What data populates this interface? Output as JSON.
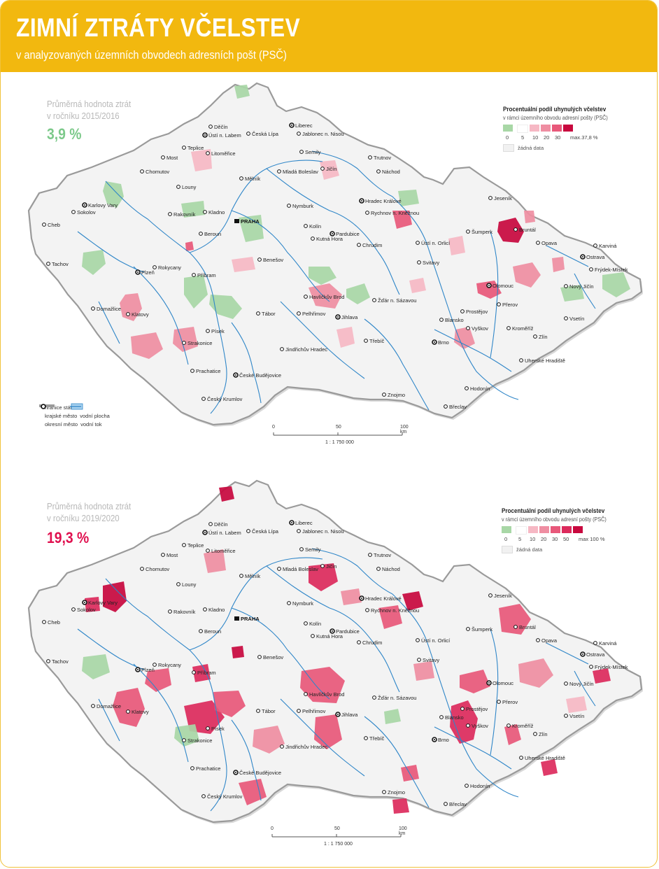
{
  "header": {
    "title": "ZIMNÍ ZTRÁTY VČELSTEV",
    "subtitle": "v analyzovaných územních obvodech adresních pošt (PSČ)"
  },
  "maps": [
    {
      "avg_label_1": "Průměrná hodnota ztrát",
      "avg_label_2": "v ročníku 2015/2016",
      "avg_value": "3,9 %",
      "avg_color": "#7cc98a",
      "legend_title": "Procentuální podíl uhynulých včelstev",
      "legend_subtitle": "v rámci územního obvodu adresní pošty (PSČ)",
      "legend_ticks": [
        "0",
        "5",
        "10",
        "20",
        "30",
        "max.37,8 %"
      ],
      "legend_nodata": "žádná data",
      "scale_ticks": [
        "0",
        "50",
        "100 km"
      ],
      "scale_ratio": "1 : 1 750 000"
    },
    {
      "avg_label_1": "Průměrná hodnota ztrát",
      "avg_label_2": "v ročníku 2019/2020",
      "avg_value": "19,3 %",
      "avg_color": "#e0104f",
      "legend_title": "Procentuální podíl uhynulých včelstev",
      "legend_subtitle": "v rámci územního obvodu adresní pošty (PSČ)",
      "legend_ticks": [
        "0",
        "5",
        "10",
        "20",
        "30",
        "50",
        "max 100 %"
      ],
      "legend_nodata": "žádná data",
      "scale_ticks": [
        "0",
        "50",
        "100 km"
      ],
      "scale_ratio": "1 : 1 750 000"
    }
  ],
  "map_legend": {
    "border": "hranice státu",
    "regional_city": "krajské město",
    "district_city": "okresní město",
    "water_area": "vodní plocha",
    "water_course": "vodní tok"
  },
  "colors": {
    "green": "#a8d7a6",
    "pink_light": "#f6b8c4",
    "pink_mid": "#ef8ea2",
    "red_mid": "#e8587a",
    "red": "#dc2a5c",
    "red_dark": "#c8083e",
    "header": "#f2b80f",
    "river": "#2f86c8"
  },
  "cities": {
    "decin": "Děčín",
    "usti": "Ústí n. Labem",
    "ceska_lipa": "Česká Lípa",
    "liberec": "Liberec",
    "jablonec": "Jablonec n. Nisou",
    "teplice": "Teplice",
    "litomerice": "Litoměřice",
    "semily": "Semily",
    "most": "Most",
    "trutnov": "Trutnov",
    "chomutov": "Chomutov",
    "mlada_boleslav": "Mladá Boleslav",
    "jicin": "Jičín",
    "nachod": "Náchod",
    "melnik": "Mělník",
    "louny": "Louny",
    "jesenik": "Jeseník",
    "hradec": "Hradec Králové",
    "karlovy_vary": "Karlovy Vary",
    "sokolov": "Sokolov",
    "rakovnik": "Rakovník",
    "kladno": "Kladno",
    "nymburk": "Nymburk",
    "rychnov": "Rychnov n. Kněžnou",
    "bruntal": "Bruntál",
    "cheb": "Cheb",
    "praha": "PRAHA",
    "kolin": "Kolín",
    "pardubice": "Pardubice",
    "sumperk": "Šumperk",
    "opava": "Opava",
    "karvina": "Karviná",
    "beroun": "Beroun",
    "kutna_hora": "Kutná Hora",
    "chrudim": "Chrudim",
    "usti_orlici": "Ústí n. Orlicí",
    "ostrava": "Ostrava",
    "tachov": "Tachov",
    "benesov": "Benešov",
    "frydek": "Frýdek-Místek",
    "rokycany": "Rokycany",
    "plzen": "Plzeň",
    "svitavy": "Svitavy",
    "pribram": "Příbram",
    "havlickuv": "Havlíčkův Brod",
    "olomouc": "Olomouc",
    "novy_jicin": "Nový Jičín",
    "zdar": "Žďár n. Sázavou",
    "domazlice": "Domažlice",
    "prerov": "Přerov",
    "prostejov": "Prostějov",
    "pelhrimov": "Pelhřimov",
    "tabor": "Tábor",
    "jihlava": "Jihlava",
    "vsetin": "Vsetín",
    "klatovy": "Klatovy",
    "blansko": "Blansko",
    "vyskov": "Vyškov",
    "kromeriz": "Kroměříž",
    "pisek": "Písek",
    "zlin": "Zlín",
    "strakonice": "Strakonice",
    "trebic": "Třebíč",
    "brno": "Brno",
    "jindrichuv": "Jindřichův Hradec",
    "uherske": "Uherské Hradiště",
    "prachatice": "Prachatice",
    "ceske_budejovice": "České Budějovice",
    "hodonin": "Hodonín",
    "cesky_krumlov": "Český Krumlov",
    "znojmo": "Znojmo",
    "breclav": "Břeclav"
  }
}
